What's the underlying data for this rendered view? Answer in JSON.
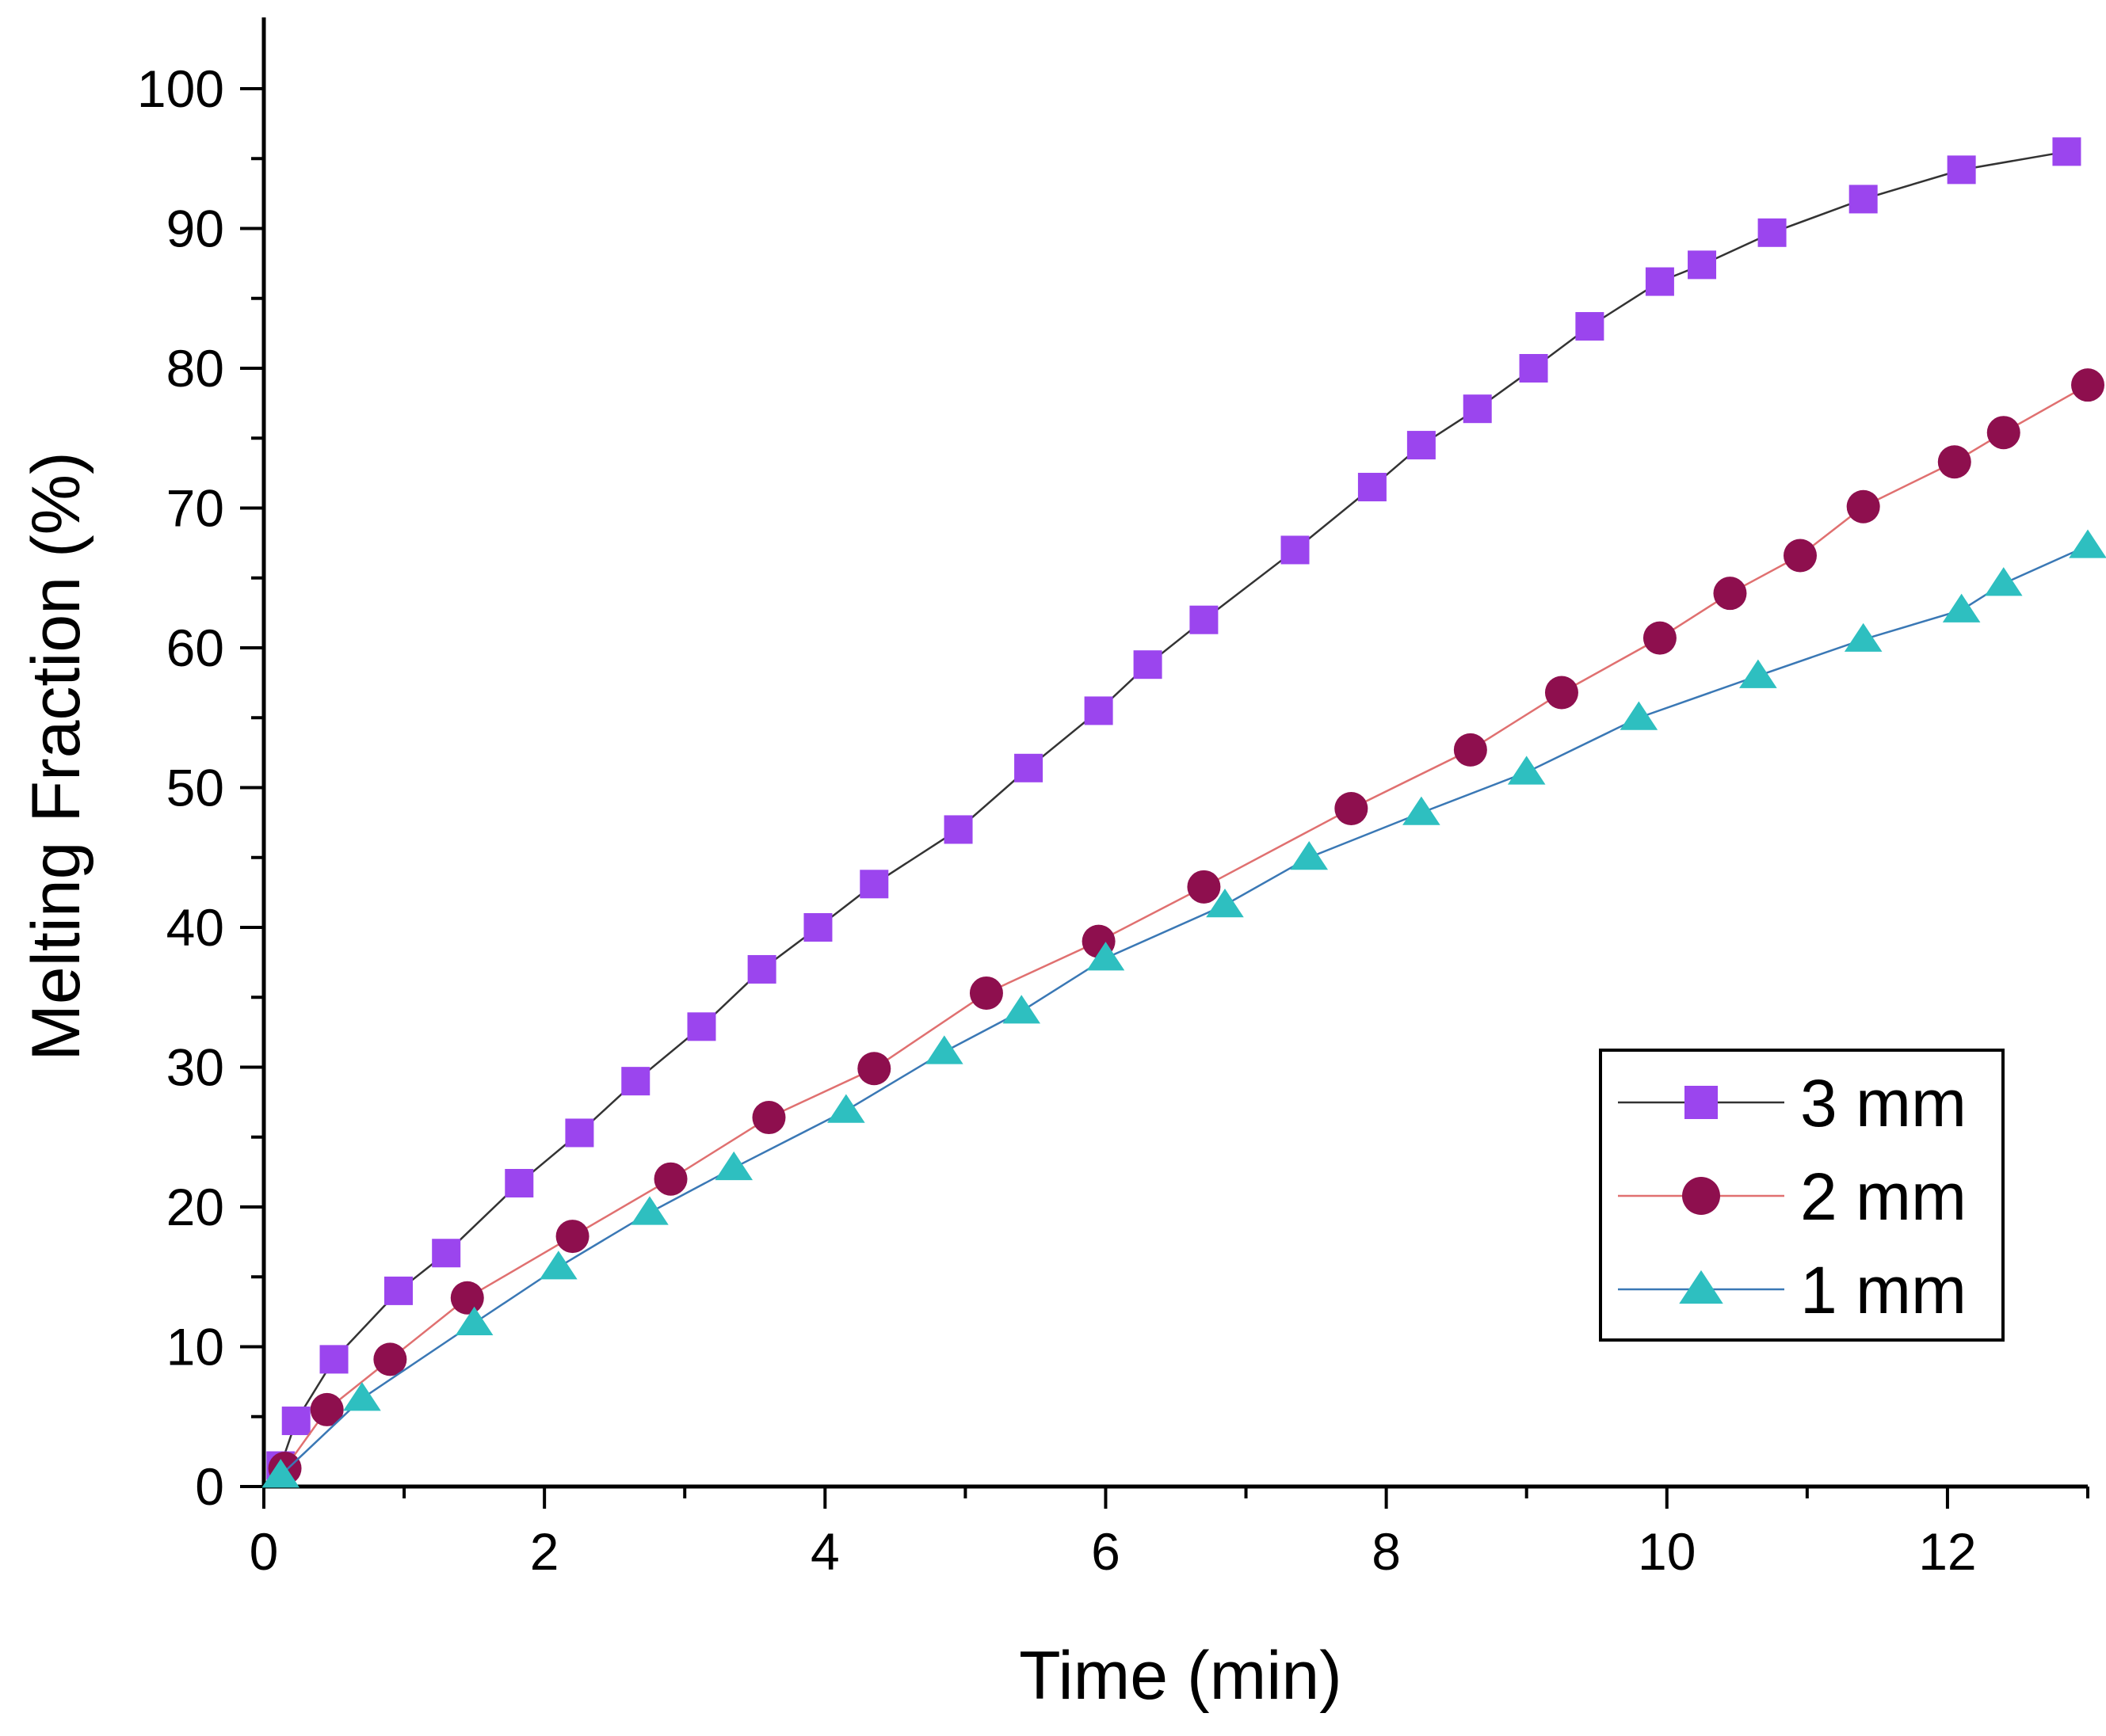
{
  "chart_data": {
    "type": "line",
    "title": "",
    "xlabel": "Time (min)",
    "ylabel": "Melting Fraction (%)",
    "xlim": [
      0,
      13
    ],
    "ylim": [
      0,
      100
    ],
    "xticks": [
      0,
      2,
      4,
      6,
      8,
      10,
      12
    ],
    "yticks": [
      0,
      10,
      20,
      30,
      40,
      50,
      60,
      70,
      80,
      90,
      100
    ],
    "grid": false,
    "legend_position": "bottom-right",
    "series": [
      {
        "name": "3 mm",
        "marker": "square",
        "marker_color": "#9B45EE",
        "line_color": "#333333",
        "x": [
          0.12,
          0.23,
          0.5,
          0.96,
          1.3,
          1.82,
          2.25,
          2.65,
          3.12,
          3.55,
          3.95,
          4.35,
          4.95,
          5.45,
          5.95,
          6.3,
          6.7,
          7.35,
          7.9,
          8.25,
          8.65,
          9.05,
          9.45,
          9.95,
          10.25,
          10.75,
          11.4,
          12.1,
          12.85
        ],
        "y": [
          1.5,
          4.7,
          9.1,
          14,
          16.7,
          21.7,
          25.3,
          29,
          32.9,
          37,
          40,
          43.1,
          47,
          51.4,
          55.5,
          58.8,
          62,
          67,
          71.5,
          74.5,
          77.1,
          80,
          83,
          86.2,
          87.4,
          89.7,
          92.1,
          94.2,
          95.5
        ]
      },
      {
        "name": "2 mm",
        "marker": "circle",
        "marker_color": "#8E0F4E",
        "line_color": "#E07070",
        "x": [
          0.15,
          0.45,
          0.9,
          1.45,
          2.2,
          2.9,
          3.6,
          4.35,
          5.15,
          5.95,
          6.7,
          7.75,
          8.6,
          9.25,
          9.95,
          10.45,
          10.95,
          11.4,
          12.05,
          12.4,
          13.0
        ],
        "y": [
          1.3,
          5.5,
          9.1,
          13.5,
          17.9,
          22,
          26.4,
          29.9,
          35.3,
          39,
          42.9,
          48.5,
          52.7,
          56.8,
          60.7,
          63.9,
          66.6,
          70.1,
          73.3,
          75.4,
          78.8
        ]
      },
      {
        "name": "1 mm",
        "marker": "triangle",
        "marker_color": "#2EBFC0",
        "line_color": "#3A78B5",
        "x": [
          0.12,
          0.7,
          1.5,
          2.1,
          2.75,
          3.35,
          4.15,
          4.85,
          5.4,
          6.0,
          6.85,
          7.45,
          8.25,
          9.0,
          9.8,
          10.65,
          11.4,
          12.1,
          12.4,
          13.0
        ],
        "y": [
          0.8,
          6.3,
          11.7,
          15.7,
          19.6,
          22.8,
          26.9,
          31.1,
          34,
          37.8,
          41.6,
          45,
          48.2,
          51.1,
          55,
          58,
          60.6,
          62.7,
          64.6,
          67.3
        ]
      }
    ]
  }
}
